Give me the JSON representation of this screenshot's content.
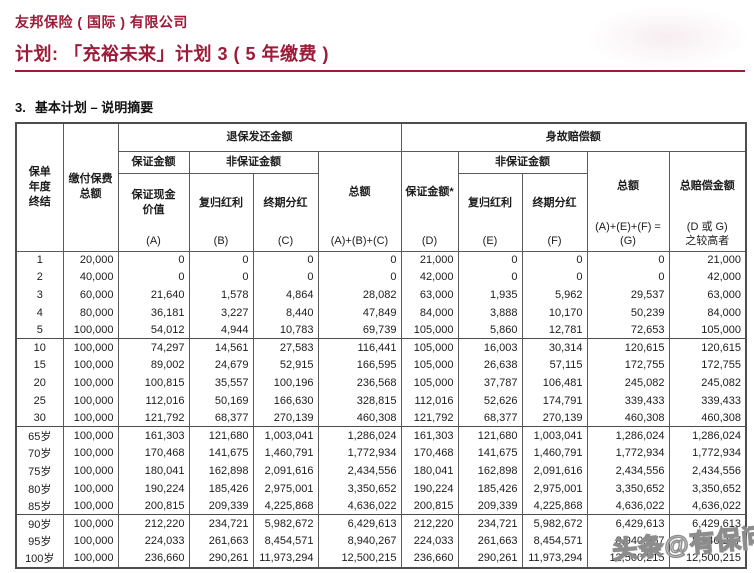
{
  "accent_color": "#9c1b38",
  "doc_header": {
    "company": "友邦保险 ( 国际 ) 有限公司",
    "plan": "计划: 「充裕未来」计划 3 ( 5 年缴费 )"
  },
  "section": {
    "number": "3.",
    "title": "基本计划 – 说明摘要"
  },
  "table": {
    "header": {
      "policy_year": "保单\n年度\n终结",
      "premium_total": "缴付保费\n总额",
      "surrender_group": "退保发还金额",
      "death_group": "身故赔偿额",
      "guaranteed": "保证金额",
      "non_guaranteed": "非保证金额",
      "guaranteed_cash_value": "保证现金\n价值",
      "reversionary_bonus": "复归红利",
      "terminal_dividend": "终期分红",
      "total": "总额",
      "guaranteed_star": "保证金额*",
      "total_benefit": "总赔偿金额",
      "letter_a": "(A)",
      "letter_b": "(B)",
      "letter_c": "(C)",
      "letter_abc": "(A)+(B)+(C)",
      "letter_d": "(D)",
      "letter_e": "(E)",
      "letter_f": "(F)",
      "letter_g": "(A)+(E)+(F) =\n(G)",
      "letter_higher": "(D 或 G)\n之较高者"
    },
    "groups": [
      {
        "rows": [
          [
            "1",
            "20,000",
            "0",
            "0",
            "0",
            "0",
            "21,000",
            "0",
            "0",
            "0",
            "21,000"
          ],
          [
            "2",
            "40,000",
            "0",
            "0",
            "0",
            "0",
            "42,000",
            "0",
            "0",
            "0",
            "42,000"
          ],
          [
            "3",
            "60,000",
            "21,640",
            "1,578",
            "4,864",
            "28,082",
            "63,000",
            "1,935",
            "5,962",
            "29,537",
            "63,000"
          ],
          [
            "4",
            "80,000",
            "36,181",
            "3,227",
            "8,440",
            "47,849",
            "84,000",
            "3,888",
            "10,170",
            "50,239",
            "84,000"
          ],
          [
            "5",
            "100,000",
            "54,012",
            "4,944",
            "10,783",
            "69,739",
            "105,000",
            "5,860",
            "12,781",
            "72,653",
            "105,000"
          ]
        ]
      },
      {
        "rows": [
          [
            "10",
            "100,000",
            "74,297",
            "14,561",
            "27,583",
            "116,441",
            "105,000",
            "16,003",
            "30,314",
            "120,615",
            "120,615"
          ],
          [
            "15",
            "100,000",
            "89,002",
            "24,679",
            "52,915",
            "166,595",
            "105,000",
            "26,638",
            "57,115",
            "172,755",
            "172,755"
          ],
          [
            "20",
            "100,000",
            "100,815",
            "35,557",
            "100,196",
            "236,568",
            "105,000",
            "37,787",
            "106,481",
            "245,082",
            "245,082"
          ],
          [
            "25",
            "100,000",
            "112,016",
            "50,169",
            "166,630",
            "328,815",
            "112,016",
            "52,626",
            "174,791",
            "339,433",
            "339,433"
          ],
          [
            "30",
            "100,000",
            "121,792",
            "68,377",
            "270,139",
            "460,308",
            "121,792",
            "68,377",
            "270,139",
            "460,308",
            "460,308"
          ]
        ]
      },
      {
        "rows": [
          [
            "65岁",
            "100,000",
            "161,303",
            "121,680",
            "1,003,041",
            "1,286,024",
            "161,303",
            "121,680",
            "1,003,041",
            "1,286,024",
            "1,286,024"
          ],
          [
            "70岁",
            "100,000",
            "170,468",
            "141,675",
            "1,460,791",
            "1,772,934",
            "170,468",
            "141,675",
            "1,460,791",
            "1,772,934",
            "1,772,934"
          ],
          [
            "75岁",
            "100,000",
            "180,041",
            "162,898",
            "2,091,616",
            "2,434,556",
            "180,041",
            "162,898",
            "2,091,616",
            "2,434,556",
            "2,434,556"
          ],
          [
            "80岁",
            "100,000",
            "190,224",
            "185,426",
            "2,975,001",
            "3,350,652",
            "190,224",
            "185,426",
            "2,975,001",
            "3,350,652",
            "3,350,652"
          ],
          [
            "85岁",
            "100,000",
            "200,815",
            "209,339",
            "4,225,868",
            "4,636,022",
            "200,815",
            "209,339",
            "4,225,868",
            "4,636,022",
            "4,636,022"
          ]
        ]
      },
      {
        "rows": [
          [
            "90岁",
            "100,000",
            "212,220",
            "234,721",
            "5,982,672",
            "6,429,613",
            "212,220",
            "234,721",
            "5,982,672",
            "6,429,613",
            "6,429,613"
          ],
          [
            "95岁",
            "100,000",
            "224,033",
            "261,663",
            "8,454,571",
            "8,940,267",
            "224,033",
            "261,663",
            "8,454,571",
            "8,940,267",
            "8,940,267"
          ],
          [
            "100岁",
            "100,000",
            "236,660",
            "290,261",
            "11,973,294",
            "12,500,215",
            "236,660",
            "290,261",
            "11,973,294",
            "12,500,215",
            "12,500,215"
          ]
        ]
      }
    ]
  },
  "watermark": {
    "text": "头条@有保问答"
  }
}
